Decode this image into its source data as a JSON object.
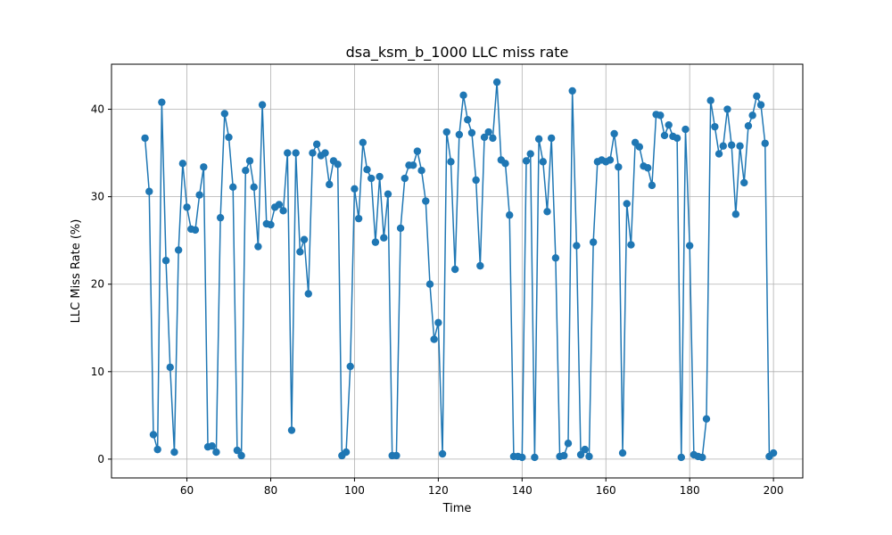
{
  "chart_data": {
    "type": "line",
    "title": "dsa_ksm_b_1000 LLC miss rate",
    "xlabel": "Time",
    "ylabel": "LLC Miss Rate (%)",
    "xlim": [
      42,
      207
    ],
    "ylim": [
      -2.15,
      45.15
    ],
    "xticks": [
      60,
      80,
      100,
      120,
      140,
      160,
      180,
      200
    ],
    "yticks": [
      0,
      10,
      20,
      30,
      40
    ],
    "grid": true,
    "color": "#1f77b4",
    "marker": "circle",
    "x": [
      50,
      51,
      52,
      53,
      54,
      55,
      56,
      57,
      58,
      59,
      60,
      61,
      62,
      63,
      64,
      65,
      66,
      67,
      68,
      69,
      70,
      71,
      72,
      73,
      74,
      75,
      76,
      77,
      78,
      79,
      80,
      81,
      82,
      83,
      84,
      85,
      86,
      87,
      88,
      89,
      90,
      91,
      92,
      93,
      94,
      95,
      96,
      97,
      98,
      99,
      100,
      101,
      102,
      103,
      104,
      105,
      106,
      107,
      108,
      109,
      110,
      111,
      112,
      113,
      114,
      115,
      116,
      117,
      118,
      119,
      120,
      121,
      122,
      123,
      124,
      125,
      126,
      127,
      128,
      129,
      130,
      131,
      132,
      133,
      134,
      135,
      136,
      137,
      138,
      139,
      140,
      141,
      142,
      143,
      144,
      145,
      146,
      147,
      148,
      149,
      150,
      151,
      152,
      153,
      154,
      155,
      156,
      157,
      158,
      159,
      160,
      161,
      162,
      163,
      164,
      165,
      166,
      167,
      168,
      169,
      170,
      171,
      172,
      173,
      174,
      175,
      176,
      177,
      178,
      179,
      180,
      181,
      182,
      183,
      184,
      185,
      186,
      187,
      188,
      189,
      190,
      191,
      192,
      193,
      194,
      195,
      196,
      197,
      198,
      199,
      200
    ],
    "y": [
      36.7,
      30.6,
      2.8,
      1.1,
      40.8,
      22.7,
      10.5,
      0.8,
      23.9,
      33.8,
      28.8,
      26.3,
      26.2,
      30.2,
      33.4,
      1.4,
      1.5,
      0.8,
      27.6,
      39.5,
      36.8,
      31.1,
      1.0,
      0.4,
      33.0,
      34.1,
      31.1,
      24.3,
      40.5,
      26.9,
      26.8,
      28.8,
      29.1,
      28.4,
      35.0,
      3.3,
      35.0,
      23.7,
      25.1,
      18.9,
      35.0,
      36.0,
      34.7,
      35.0,
      31.4,
      34.1,
      33.7,
      0.4,
      0.8,
      10.6,
      30.9,
      27.5,
      36.2,
      33.1,
      32.1,
      24.8,
      32.3,
      25.3,
      30.3,
      0.4,
      0.4,
      26.4,
      32.1,
      33.6,
      33.6,
      35.2,
      33.0,
      29.5,
      20.0,
      13.7,
      15.6,
      0.6,
      37.4,
      34.0,
      21.7,
      37.1,
      41.6,
      38.8,
      37.3,
      31.9,
      22.1,
      36.8,
      37.4,
      36.7,
      43.1,
      34.2,
      33.8,
      27.9,
      0.3,
      0.3,
      0.2,
      34.1,
      34.9,
      0.2,
      36.6,
      34.0,
      28.3,
      36.7,
      23.0,
      0.3,
      0.4,
      1.8,
      42.1,
      24.4,
      0.5,
      1.1,
      0.3,
      24.8,
      34.0,
      34.2,
      34.0,
      34.2,
      37.2,
      33.4,
      0.7,
      29.2,
      24.5,
      36.2,
      35.7,
      33.5,
      33.3,
      31.3,
      39.4,
      39.3,
      37.0,
      38.2,
      36.9,
      36.7,
      0.2,
      37.7,
      24.4,
      0.5,
      0.3,
      0.2,
      4.6,
      41.0,
      38.0,
      34.9,
      35.8,
      40.0,
      35.9,
      28.0,
      35.8,
      31.6,
      38.1,
      39.3,
      41.5,
      40.5,
      36.1,
      0.3,
      0.7
    ]
  }
}
